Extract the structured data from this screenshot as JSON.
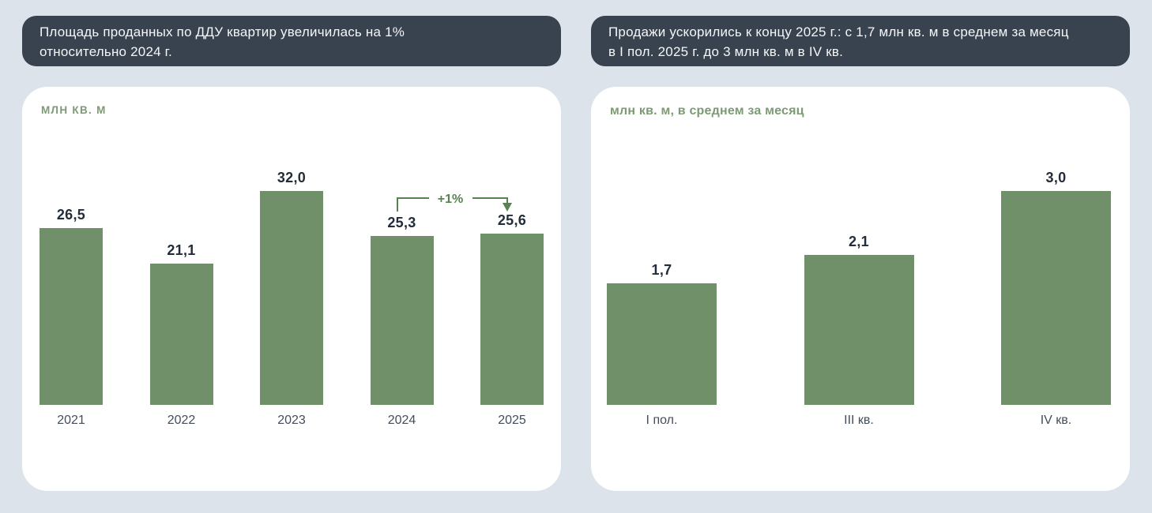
{
  "page": {
    "background_color": "#dce3eb"
  },
  "colors": {
    "page_bg": "#dce3eb",
    "card_bg": "#ffffff",
    "headline_bg": "#39434f",
    "headline_text": "#f4f6f8",
    "bar": "#6f9069",
    "annotation_green": "#578351",
    "unit_label_green": "#7d9a74",
    "value_text": "#222d39",
    "axis_text": "#434e59"
  },
  "panels": {
    "left": {
      "headline": {
        "line1": "Площадь проданных по ДДУ квартир увеличилась на 1%",
        "line2": "относительно 2024 г."
      },
      "unit_label": "млн кв. м"
    },
    "right": {
      "headline": {
        "line1": "Продажи ускорились к концу 2025 г.: с 1,7 млн кв. м в среднем за месяц",
        "line2": "в I пол. 2025 г. до 3 млн кв. м в IV кв."
      },
      "unit_label": "млн кв. м, в среднем за месяц"
    }
  },
  "chart_data": [
    {
      "type": "bar",
      "title": "Площадь проданных по ДДУ квартир увеличилась на 1% относительно 2024 г.",
      "unit_label": "млн кв. м",
      "categories": [
        "2021",
        "2022",
        "2023",
        "2024",
        "2025"
      ],
      "values": [
        26.5,
        21.1,
        32.0,
        25.3,
        25.6
      ],
      "value_labels": [
        "26,5",
        "21,1",
        "32,0",
        "25,3",
        "25,6"
      ],
      "ylim": [
        0,
        32
      ],
      "grid": false,
      "legend": "none",
      "annotation": {
        "text": "+1%",
        "from_category": "2024",
        "to_category": "2025"
      }
    },
    {
      "type": "bar",
      "title": "Продажи ускорились к концу 2025 г.: с 1,7 млн кв. м в среднем за месяц в I пол. 2025 г. до 3 млн кв. м в IV кв.",
      "unit_label": "млн кв. м, в среднем за месяц",
      "categories": [
        "I пол.",
        "III кв.",
        "IV кв."
      ],
      "values": [
        1.7,
        2.1,
        3.0
      ],
      "value_labels": [
        "1,7",
        "2,1",
        "3,0"
      ],
      "ylim": [
        0,
        3
      ],
      "grid": false,
      "legend": "none"
    }
  ]
}
